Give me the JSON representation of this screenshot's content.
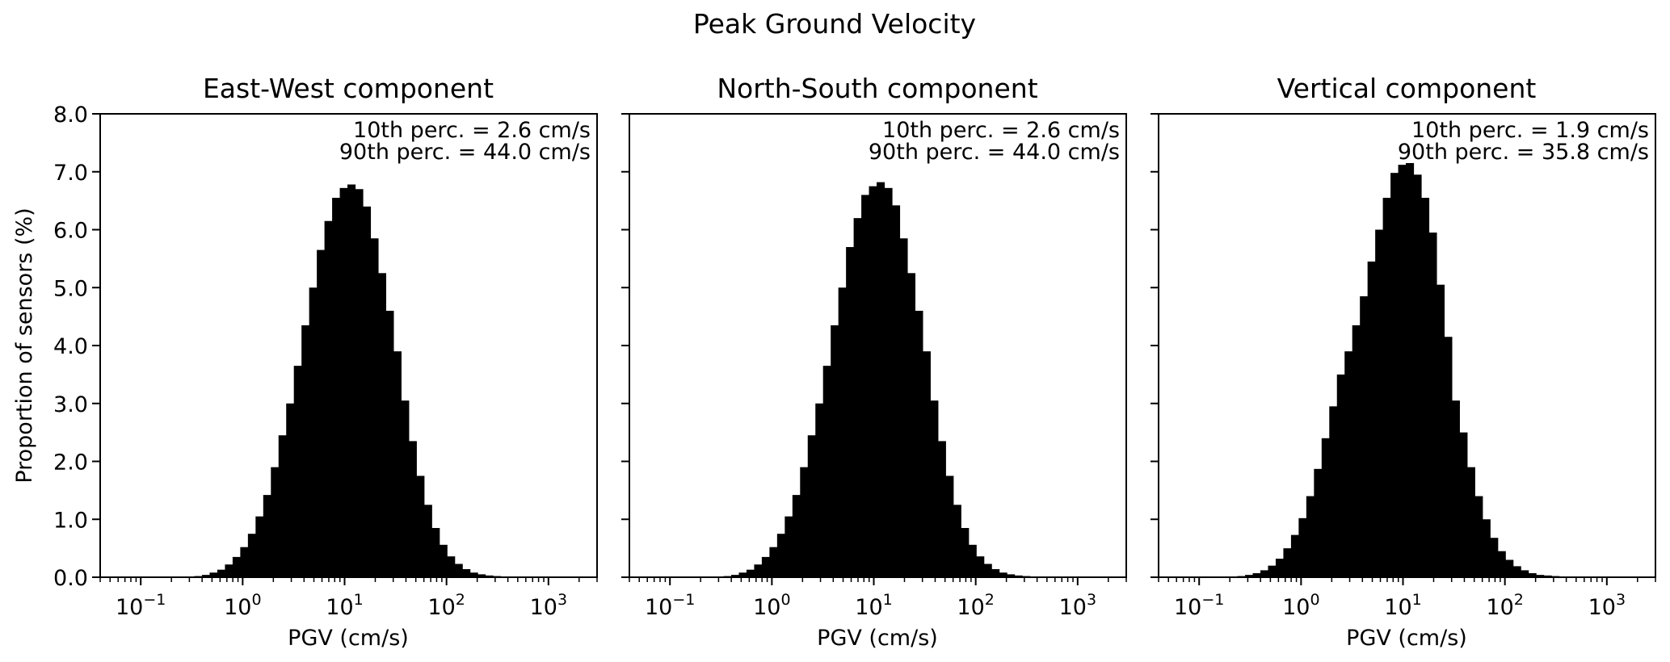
{
  "figure": {
    "suptitle": "Peak Ground Velocity"
  },
  "chart_data": [
    {
      "type": "bar",
      "title": "East-West component",
      "xlabel": "PGV (cm/s)",
      "ylabel": "Proportion of sensors (%)",
      "xscale": "log",
      "xlim": [
        0.04,
        3000
      ],
      "ylim": [
        0,
        8
      ],
      "xticks": [
        0.1,
        1,
        10,
        100,
        1000
      ],
      "xtick_labels": [
        {
          "base": "10",
          "exp": "−1"
        },
        {
          "base": "10",
          "exp": "0"
        },
        {
          "base": "10",
          "exp": "1"
        },
        {
          "base": "10",
          "exp": "2"
        },
        {
          "base": "10",
          "exp": "3"
        }
      ],
      "yticks": [
        0,
        1,
        2,
        3,
        4,
        5,
        6,
        7,
        8
      ],
      "ytick_labels": [
        "0.0",
        "1.0",
        "2.0",
        "3.0",
        "4.0",
        "5.0",
        "6.0",
        "7.0",
        "8.0"
      ],
      "annotations": [
        "10th perc. = 2.6 cm/s",
        "90th perc. = 44.0 cm/s"
      ],
      "grid": false,
      "bins": {
        "start": 0.1,
        "ratio": 1.1888,
        "count": 52
      },
      "values": [
        0,
        0,
        0,
        0,
        0,
        0,
        0.01,
        0.02,
        0.04,
        0.08,
        0.13,
        0.22,
        0.35,
        0.52,
        0.75,
        1.05,
        1.42,
        1.9,
        2.45,
        3.0,
        3.65,
        4.35,
        5.0,
        5.65,
        6.15,
        6.55,
        6.72,
        6.78,
        6.7,
        6.4,
        5.85,
        5.25,
        4.6,
        3.9,
        3.05,
        2.35,
        1.75,
        1.25,
        0.85,
        0.56,
        0.36,
        0.23,
        0.14,
        0.08,
        0.05,
        0.03,
        0.02,
        0.01,
        0.01,
        0,
        0,
        0
      ]
    },
    {
      "type": "bar",
      "title": "North-South component",
      "xlabel": "PGV (cm/s)",
      "ylabel": "",
      "xscale": "log",
      "xlim": [
        0.04,
        3000
      ],
      "ylim": [
        0,
        8
      ],
      "xticks": [
        0.1,
        1,
        10,
        100,
        1000
      ],
      "xtick_labels": [
        {
          "base": "10",
          "exp": "−1"
        },
        {
          "base": "10",
          "exp": "0"
        },
        {
          "base": "10",
          "exp": "1"
        },
        {
          "base": "10",
          "exp": "2"
        },
        {
          "base": "10",
          "exp": "3"
        }
      ],
      "yticks": [
        0,
        1,
        2,
        3,
        4,
        5,
        6,
        7,
        8
      ],
      "ytick_labels": [],
      "annotations": [
        "10th perc. = 2.6 cm/s",
        "90th perc. = 44.0 cm/s"
      ],
      "grid": false,
      "bins": {
        "start": 0.1,
        "ratio": 1.1888,
        "count": 52
      },
      "values": [
        0,
        0,
        0,
        0,
        0,
        0,
        0.01,
        0.02,
        0.04,
        0.08,
        0.13,
        0.22,
        0.35,
        0.52,
        0.75,
        1.05,
        1.42,
        1.9,
        2.45,
        3.0,
        3.65,
        4.35,
        5.0,
        5.7,
        6.2,
        6.6,
        6.75,
        6.82,
        6.72,
        6.42,
        5.85,
        5.25,
        4.6,
        3.9,
        3.05,
        2.35,
        1.75,
        1.25,
        0.85,
        0.56,
        0.36,
        0.23,
        0.14,
        0.08,
        0.05,
        0.03,
        0.02,
        0.01,
        0.01,
        0,
        0,
        0
      ]
    },
    {
      "type": "bar",
      "title": "Vertical component",
      "xlabel": "PGV (cm/s)",
      "ylabel": "",
      "xscale": "log",
      "xlim": [
        0.04,
        3000
      ],
      "ylim": [
        0,
        8
      ],
      "xticks": [
        0.1,
        1,
        10,
        100,
        1000
      ],
      "xtick_labels": [
        {
          "base": "10",
          "exp": "−1"
        },
        {
          "base": "10",
          "exp": "0"
        },
        {
          "base": "10",
          "exp": "1"
        },
        {
          "base": "10",
          "exp": "2"
        },
        {
          "base": "10",
          "exp": "3"
        }
      ],
      "yticks": [
        0,
        1,
        2,
        3,
        4,
        5,
        6,
        7,
        8
      ],
      "ytick_labels": [],
      "annotations": [
        "10th perc. = 1.9 cm/s",
        "90th perc. = 35.8 cm/s"
      ],
      "grid": false,
      "bins": {
        "start": 0.1,
        "ratio": 1.1888,
        "count": 52
      },
      "values": [
        0,
        0,
        0,
        0,
        0.01,
        0.02,
        0.04,
        0.07,
        0.12,
        0.2,
        0.32,
        0.5,
        0.73,
        1.02,
        1.4,
        1.87,
        2.4,
        2.95,
        3.5,
        3.9,
        4.35,
        4.85,
        5.45,
        6.0,
        6.55,
        6.98,
        7.12,
        7.15,
        6.95,
        6.55,
        5.95,
        5.05,
        4.15,
        3.05,
        2.5,
        1.9,
        1.4,
        1.0,
        0.68,
        0.45,
        0.3,
        0.19,
        0.12,
        0.07,
        0.04,
        0.03,
        0.02,
        0.01,
        0.01,
        0,
        0,
        0
      ]
    }
  ]
}
